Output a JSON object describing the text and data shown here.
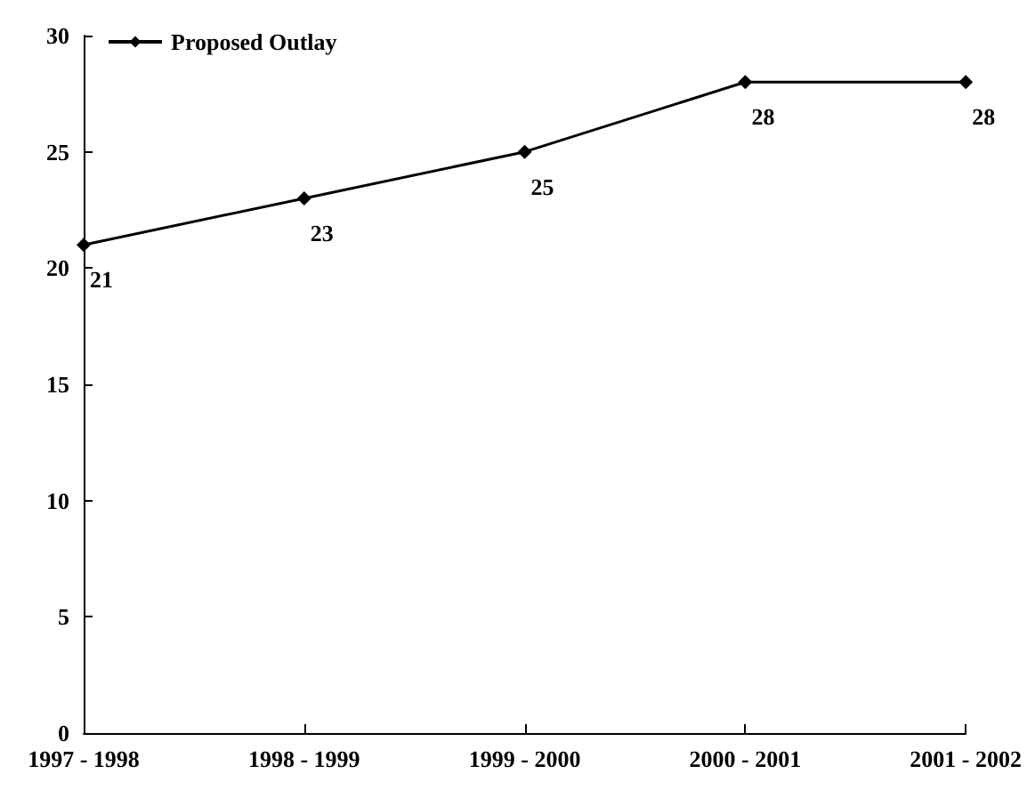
{
  "chart_data": {
    "type": "line",
    "categories": [
      "1997 - 1998",
      "1998 - 1999",
      "1999 - 2000",
      "2000 - 2001",
      "2001 - 2002"
    ],
    "series": [
      {
        "name": "Proposed Outlay",
        "color": "#000000",
        "values": [
          21,
          23,
          25,
          28,
          28
        ]
      }
    ],
    "ylim": [
      0,
      30
    ],
    "yticks": [
      0,
      5,
      10,
      15,
      20,
      25,
      30
    ],
    "grid": false,
    "legend": "top left",
    "marker": "diamond",
    "line_style": "solid",
    "data_labels": true
  }
}
